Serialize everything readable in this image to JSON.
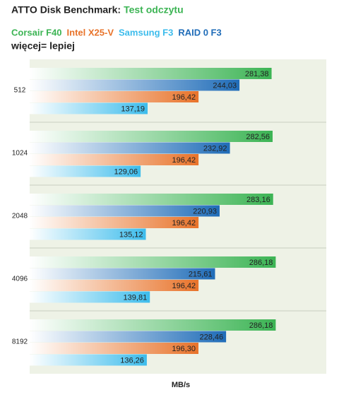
{
  "chart_data": {
    "type": "bar",
    "orientation": "horizontal",
    "title": "ATTO Disk Benchmark:",
    "subtitle": "Test odczytu",
    "subtitle_color": "#3cb454",
    "annotation": "więcej= lepiej",
    "xlabel": "MB/s",
    "categories": [
      "512",
      "1024",
      "2048",
      "4096",
      "8192"
    ],
    "series": [
      {
        "name": "Corsair F40",
        "color": "#3cb454",
        "values": [
          281.38,
          282.56,
          283.16,
          286.18,
          286.18
        ],
        "value_labels": [
          "281,38",
          "282,56",
          "283,16",
          "286,18",
          "286,18"
        ]
      },
      {
        "name": "Intel X25-V",
        "color": "#e8732a",
        "values": [
          196.42,
          196.42,
          196.42,
          196.42,
          196.3
        ],
        "value_labels": [
          "196,42",
          "196,42",
          "196,42",
          "196,42",
          "196,30"
        ]
      },
      {
        "name": "Samsung F3",
        "color": "#3cbcec",
        "values": [
          137.19,
          129.06,
          135.12,
          139.81,
          136.26
        ],
        "value_labels": [
          "137,19",
          "129,06",
          "135,12",
          "139,81",
          "136,26"
        ]
      },
      {
        "name": "RAID 0 F3",
        "color": "#1f6cb8",
        "values": [
          244.03,
          232.92,
          220.93,
          215.61,
          228.46
        ],
        "value_labels": [
          "244,03",
          "232,92",
          "220,93",
          "215,61",
          "228,46"
        ]
      }
    ],
    "xlim": [
      0,
      345
    ]
  }
}
